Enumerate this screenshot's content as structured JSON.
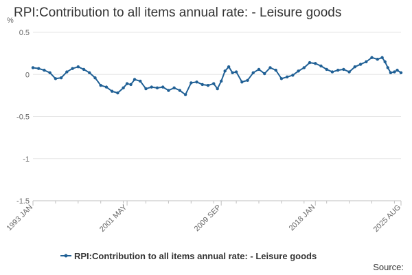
{
  "chart_data": {
    "type": "line",
    "title": "RPI:Contribution to all items annual rate: - Leisure goods",
    "ylabel": "%",
    "xlabel": "",
    "source_label": "Source:",
    "ylim": [
      -1.5,
      0.5
    ],
    "yticks": [
      0.5,
      0,
      -0.5,
      -1,
      -1.5
    ],
    "ytick_labels": [
      "0.5",
      "0",
      "-0.5",
      "-1",
      "-1.5"
    ],
    "x_start": "1993 JAN",
    "x_end": "2025 AUG",
    "xticks": [
      "1993 JAN",
      "2001 MAY",
      "2009 SEP",
      "2018 JAN",
      "2025 AUG"
    ],
    "grid": true,
    "legend_position": "bottom",
    "colors": {
      "series": "#206095",
      "grid": "#e6e6e6",
      "axis": "#bfbfbf"
    },
    "series": [
      {
        "name": "RPI:Contribution to all items annual rate: - Leisure goods",
        "points": [
          [
            "1993 JAN",
            0.08
          ],
          [
            "1993 JUL",
            0.07
          ],
          [
            "1994 JAN",
            0.05
          ],
          [
            "1994 JUL",
            0.02
          ],
          [
            "1995 JAN",
            -0.05
          ],
          [
            "1995 JUL",
            -0.04
          ],
          [
            "1996 JAN",
            0.03
          ],
          [
            "1996 JUL",
            0.07
          ],
          [
            "1997 JAN",
            0.09
          ],
          [
            "1997 JUL",
            0.06
          ],
          [
            "1998 JAN",
            0.02
          ],
          [
            "1998 JUL",
            -0.04
          ],
          [
            "1999 JAN",
            -0.13
          ],
          [
            "1999 JUL",
            -0.15
          ],
          [
            "2000 JAN",
            -0.2
          ],
          [
            "2000 JUL",
            -0.22
          ],
          [
            "2001 JAN",
            -0.16
          ],
          [
            "2001 MAY",
            -0.11
          ],
          [
            "2001 SEP",
            -0.12
          ],
          [
            "2002 JAN",
            -0.06
          ],
          [
            "2002 JUL",
            -0.08
          ],
          [
            "2003 JAN",
            -0.17
          ],
          [
            "2003 JUL",
            -0.15
          ],
          [
            "2004 JAN",
            -0.16
          ],
          [
            "2004 JUL",
            -0.15
          ],
          [
            "2005 JAN",
            -0.19
          ],
          [
            "2005 JUL",
            -0.16
          ],
          [
            "2006 JAN",
            -0.19
          ],
          [
            "2006 JUL",
            -0.24
          ],
          [
            "2007 JAN",
            -0.1
          ],
          [
            "2007 JUL",
            -0.09
          ],
          [
            "2008 JAN",
            -0.12
          ],
          [
            "2008 JUL",
            -0.13
          ],
          [
            "2009 JAN",
            -0.11
          ],
          [
            "2009 MAY",
            -0.17
          ],
          [
            "2009 SEP",
            -0.08
          ],
          [
            "2010 JAN",
            0.04
          ],
          [
            "2010 MAY",
            0.09
          ],
          [
            "2010 SEP",
            0.02
          ],
          [
            "2011 JAN",
            0.03
          ],
          [
            "2011 JUL",
            -0.09
          ],
          [
            "2012 JAN",
            -0.07
          ],
          [
            "2012 JUL",
            0.02
          ],
          [
            "2013 JAN",
            0.06
          ],
          [
            "2013 JUL",
            0.01
          ],
          [
            "2014 JAN",
            0.08
          ],
          [
            "2014 JUL",
            0.05
          ],
          [
            "2015 JAN",
            -0.05
          ],
          [
            "2015 JUL",
            -0.03
          ],
          [
            "2016 JAN",
            -0.01
          ],
          [
            "2016 JUL",
            0.04
          ],
          [
            "2017 JAN",
            0.08
          ],
          [
            "2017 JUL",
            0.14
          ],
          [
            "2018 JAN",
            0.13
          ],
          [
            "2018 JUL",
            0.1
          ],
          [
            "2019 JAN",
            0.06
          ],
          [
            "2019 JUL",
            0.03
          ],
          [
            "2020 JAN",
            0.05
          ],
          [
            "2020 JUL",
            0.06
          ],
          [
            "2021 JAN",
            0.03
          ],
          [
            "2021 JUL",
            0.09
          ],
          [
            "2022 JAN",
            0.12
          ],
          [
            "2022 JUL",
            0.15
          ],
          [
            "2023 JAN",
            0.2
          ],
          [
            "2023 JUL",
            0.18
          ],
          [
            "2023 DEC",
            0.2
          ],
          [
            "2024 MAR",
            0.15
          ],
          [
            "2024 JUN",
            0.08
          ],
          [
            "2024 SEP",
            0.02
          ],
          [
            "2025 JAN",
            0.03
          ],
          [
            "2025 APR",
            0.05
          ],
          [
            "2025 AUG",
            0.02
          ]
        ]
      }
    ]
  }
}
